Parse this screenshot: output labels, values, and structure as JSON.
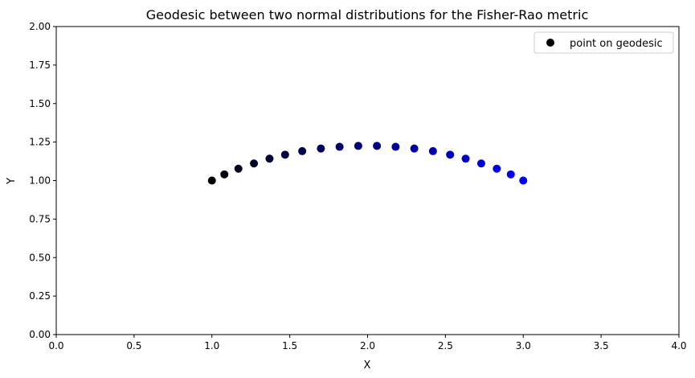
{
  "chart_data": {
    "type": "scatter",
    "title": "Geodesic between two normal distributions for the Fisher-Rao metric",
    "xlabel": "X",
    "ylabel": "Y",
    "xlim": [
      0,
      4
    ],
    "ylim": [
      0,
      2
    ],
    "xticks": [
      "0.0",
      "0.5",
      "1.0",
      "1.5",
      "2.0",
      "2.5",
      "3.0",
      "3.5",
      "4.0"
    ],
    "yticks": [
      "0.00",
      "0.25",
      "0.50",
      "0.75",
      "1.00",
      "1.25",
      "1.50",
      "1.75",
      "2.00"
    ],
    "grid": false,
    "legend_position": "top-right",
    "series": [
      {
        "name": "point on geodesic",
        "legend_color": "#000000",
        "color_start": "#000000",
        "color_end": "#0000ff",
        "points": [
          {
            "x": 1.0,
            "y": 1.0
          },
          {
            "x": 1.08,
            "y": 1.04
          },
          {
            "x": 1.17,
            "y": 1.077
          },
          {
            "x": 1.27,
            "y": 1.111
          },
          {
            "x": 1.37,
            "y": 1.142
          },
          {
            "x": 1.47,
            "y": 1.168
          },
          {
            "x": 1.58,
            "y": 1.191
          },
          {
            "x": 1.7,
            "y": 1.208
          },
          {
            "x": 1.82,
            "y": 1.219
          },
          {
            "x": 1.94,
            "y": 1.225
          },
          {
            "x": 2.06,
            "y": 1.225
          },
          {
            "x": 2.18,
            "y": 1.219
          },
          {
            "x": 2.3,
            "y": 1.208
          },
          {
            "x": 2.42,
            "y": 1.191
          },
          {
            "x": 2.53,
            "y": 1.168
          },
          {
            "x": 2.63,
            "y": 1.142
          },
          {
            "x": 2.73,
            "y": 1.111
          },
          {
            "x": 2.83,
            "y": 1.077
          },
          {
            "x": 2.92,
            "y": 1.04
          },
          {
            "x": 3.0,
            "y": 1.0
          }
        ]
      }
    ]
  }
}
